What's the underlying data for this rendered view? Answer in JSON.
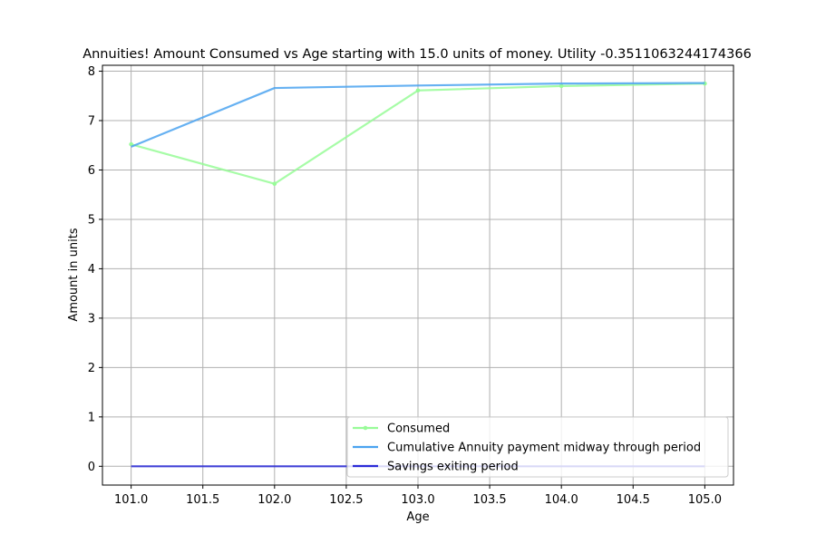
{
  "chart_data": {
    "type": "line",
    "title": "Annuities! Amount Consumed vs Age starting with 15.0 units of money. Utility -0.3511063244174366",
    "xlabel": "Age",
    "ylabel": "Amount in units",
    "xlim": [
      100.8,
      105.2
    ],
    "ylim": [
      -0.38,
      8.12
    ],
    "xticks": [
      101.0,
      101.5,
      102.0,
      102.5,
      103.0,
      103.5,
      104.0,
      104.5,
      105.0
    ],
    "xtick_labels": [
      "101.0",
      "101.5",
      "102.0",
      "102.5",
      "103.0",
      "103.5",
      "104.0",
      "104.5",
      "105.0"
    ],
    "yticks": [
      0,
      1,
      2,
      3,
      4,
      5,
      6,
      7,
      8
    ],
    "ytick_labels": [
      "0",
      "1",
      "2",
      "3",
      "4",
      "5",
      "6",
      "7",
      "8"
    ],
    "grid": true,
    "legend_position": "lower-right",
    "x": [
      101,
      102,
      103,
      104,
      105
    ],
    "series": [
      {
        "name": "Consumed",
        "values": [
          6.52,
          5.72,
          7.61,
          7.7,
          7.75
        ],
        "color": "#98fb98",
        "markers": true
      },
      {
        "name": "Cumulative Annuity payment midway through period",
        "values": [
          6.47,
          7.66,
          7.71,
          7.75,
          7.76
        ],
        "color": "#4ba3f0",
        "markers": false
      },
      {
        "name": "Savings exiting period",
        "values": [
          0,
          0,
          0,
          0,
          0
        ],
        "color": "#2b2bd8",
        "markers": false
      }
    ]
  }
}
